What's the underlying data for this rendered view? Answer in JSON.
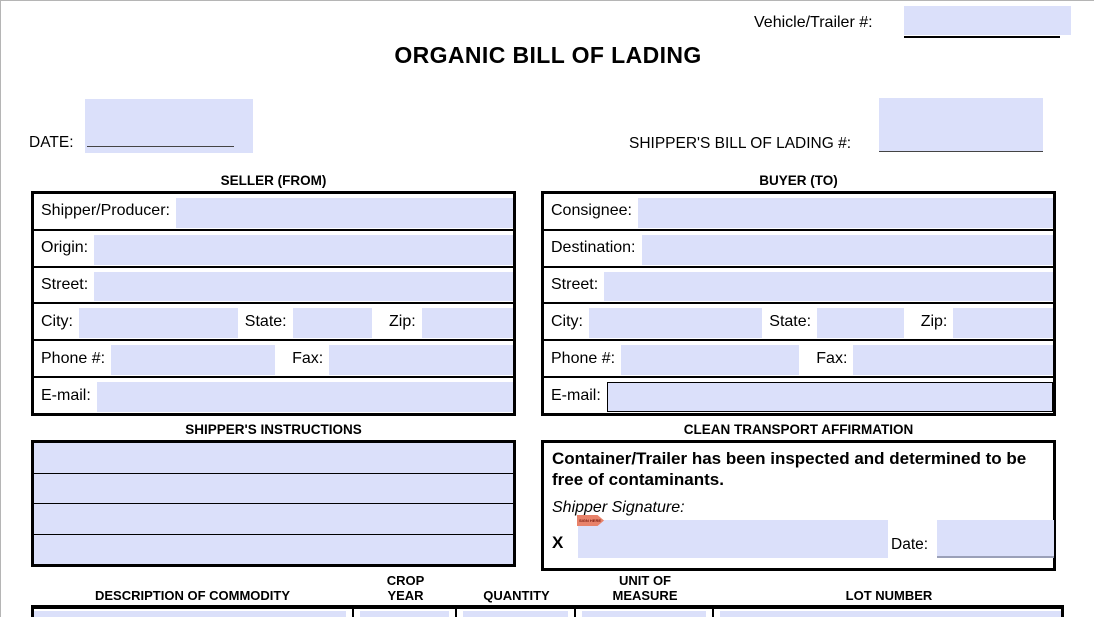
{
  "top": {
    "vehicle_trailer_label": "Vehicle/Trailer #:",
    "vehicle_trailer_value": "",
    "title": "ORGANIC BILL OF LADING",
    "date_label": "DATE:",
    "date_value": "",
    "shippers_bol_label": "SHIPPER'S BILL OF LADING #:",
    "shippers_bol_value": ""
  },
  "seller": {
    "heading": "SELLER (FROM)",
    "labels": {
      "producer": "Shipper/Producer:",
      "origin": "Origin:",
      "street": "Street:",
      "city": "City:",
      "state": "State:",
      "zip": "Zip:",
      "phone": "Phone #:",
      "fax": "Fax:",
      "email": "E-mail:"
    },
    "fields": {
      "producer": "",
      "origin": "",
      "street": "",
      "city": "",
      "state": "",
      "zip": "",
      "phone": "",
      "fax": "",
      "email": ""
    }
  },
  "buyer": {
    "heading": "BUYER (TO)",
    "labels": {
      "consignee": "Consignee:",
      "destination": "Destination:",
      "street": "Street:",
      "city": "City:",
      "state": "State:",
      "zip": "Zip:",
      "phone": "Phone #:",
      "fax": "Fax:",
      "email": "E-mail:"
    },
    "fields": {
      "consignee": "",
      "destination": "",
      "street": "",
      "city": "",
      "state": "",
      "zip": "",
      "phone": "",
      "fax": "",
      "email": ""
    }
  },
  "instructions": {
    "heading": "SHIPPER'S INSTRUCTIONS",
    "lines": [
      "",
      "",
      "",
      ""
    ]
  },
  "affirmation": {
    "heading": "CLEAN TRANSPORT AFFIRMATION",
    "statement": "Container/Trailer has been inspected and determined to be free of contaminants.",
    "signature_label": "Shipper Signature:",
    "signature_prefix": "X",
    "sign_here_tag": "SIGN HERE",
    "signature_value": "",
    "date_label": "Date:",
    "date_value": ""
  },
  "commodity_table": {
    "columns": [
      {
        "lines": [
          "DESCRIPTION OF COMMODITY"
        ]
      },
      {
        "lines": [
          "CROP",
          "YEAR"
        ]
      },
      {
        "lines": [
          "QUANTITY"
        ]
      },
      {
        "lines": [
          "UNIT OF",
          "MEASURE"
        ]
      },
      {
        "lines": [
          "LOT NUMBER"
        ]
      }
    ],
    "row_values": [
      "",
      "",
      "",
      "",
      ""
    ]
  },
  "colors": {
    "field_fill": "#dbe0fa",
    "border": "#000000",
    "sign_flag": "#e8826a"
  }
}
